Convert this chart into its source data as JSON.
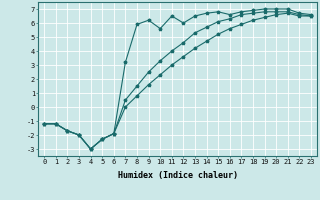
{
  "title": "",
  "xlabel": "Humidex (Indice chaleur)",
  "ylabel": "",
  "bg_color": "#cce8e8",
  "line_color": "#1a6b6b",
  "grid_color": "#ffffff",
  "xlim": [
    -0.5,
    23.5
  ],
  "ylim": [
    -3.5,
    7.5
  ],
  "yticks": [
    -3,
    -2,
    -1,
    0,
    1,
    2,
    3,
    4,
    5,
    6,
    7
  ],
  "xticks": [
    0,
    1,
    2,
    3,
    4,
    5,
    6,
    7,
    8,
    9,
    10,
    11,
    12,
    13,
    14,
    15,
    16,
    17,
    18,
    19,
    20,
    21,
    22,
    23
  ],
  "curve1_x": [
    0,
    1,
    2,
    3,
    4,
    5,
    6,
    7,
    8,
    9,
    10,
    11,
    12,
    13,
    14,
    15,
    16,
    17,
    18,
    19,
    20,
    21,
    22,
    23
  ],
  "curve1_y": [
    -1.2,
    -1.2,
    -1.7,
    -2.0,
    -3.0,
    -2.3,
    -1.9,
    3.2,
    5.9,
    6.2,
    5.6,
    6.5,
    6.0,
    6.5,
    6.7,
    6.8,
    6.6,
    6.8,
    6.9,
    7.0,
    7.0,
    7.0,
    6.7,
    6.6
  ],
  "curve2_x": [
    0,
    1,
    2,
    3,
    4,
    5,
    6,
    7,
    8,
    9,
    10,
    11,
    12,
    13,
    14,
    15,
    16,
    17,
    18,
    19,
    20,
    21,
    22,
    23
  ],
  "curve2_y": [
    -1.2,
    -1.2,
    -1.7,
    -2.0,
    -3.0,
    -2.3,
    -1.9,
    0.5,
    1.5,
    2.5,
    3.3,
    4.0,
    4.6,
    5.3,
    5.7,
    6.1,
    6.3,
    6.6,
    6.7,
    6.8,
    6.8,
    6.8,
    6.6,
    6.5
  ],
  "curve3_x": [
    0,
    1,
    2,
    3,
    4,
    5,
    6,
    7,
    8,
    9,
    10,
    11,
    12,
    13,
    14,
    15,
    16,
    17,
    18,
    19,
    20,
    21,
    22,
    23
  ],
  "curve3_y": [
    -1.2,
    -1.2,
    -1.7,
    -2.0,
    -3.0,
    -2.3,
    -1.9,
    0.0,
    0.8,
    1.6,
    2.3,
    3.0,
    3.6,
    4.2,
    4.7,
    5.2,
    5.6,
    5.9,
    6.2,
    6.4,
    6.6,
    6.7,
    6.5,
    6.5
  ],
  "tick_fontsize": 5.0,
  "xlabel_fontsize": 6.0
}
